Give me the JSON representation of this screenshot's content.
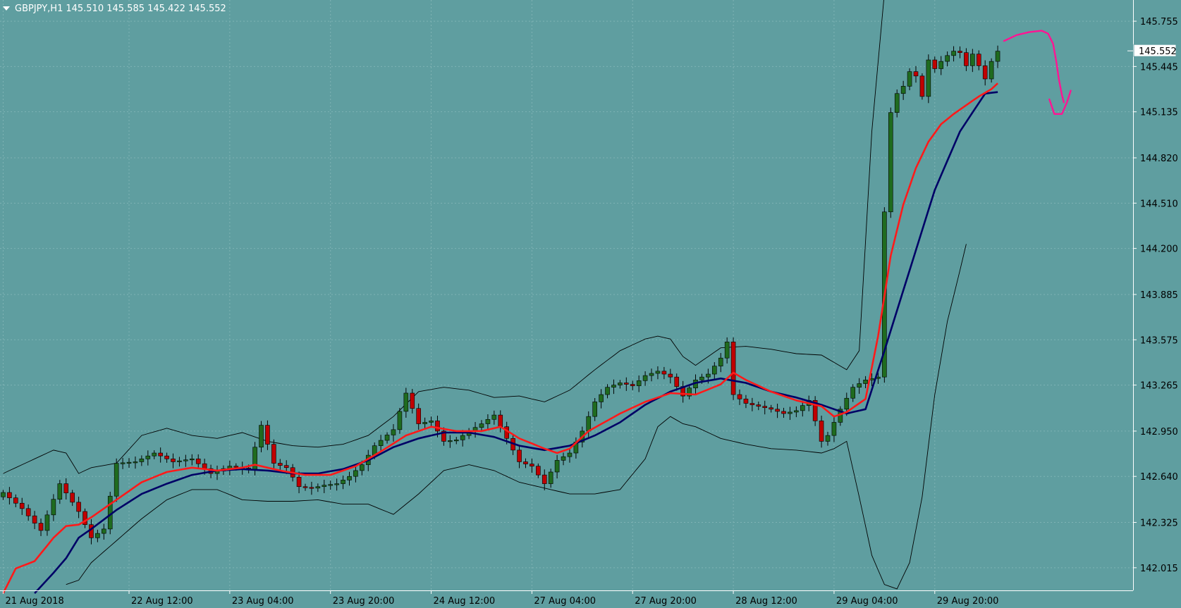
{
  "header": {
    "symbol": "GBPJPY,H1",
    "ohlc": "145.510 145.585 145.422 145.552"
  },
  "chart_data": {
    "type": "candlestick",
    "symbol": "GBPJPY",
    "timeframe": "H1",
    "ylim": [
      141.86,
      145.9
    ],
    "y_ticks": [
      "145.755",
      "145.445",
      "145.135",
      "144.820",
      "144.510",
      "144.200",
      "143.885",
      "143.575",
      "143.265",
      "142.950",
      "142.640",
      "142.325",
      "142.015"
    ],
    "x_ticks": [
      "21 Aug 2018",
      "22 Aug 12:00",
      "23 Aug 04:00",
      "23 Aug 20:00",
      "24 Aug 12:00",
      "27 Aug 04:00",
      "27 Aug 20:00",
      "28 Aug 12:00",
      "29 Aug 04:00",
      "29 Aug 20:00"
    ],
    "x_tick_index": [
      0,
      20,
      36,
      52,
      68,
      84,
      100,
      116,
      132,
      148
    ],
    "bars_visible": 180,
    "current_price": "145.552",
    "grid": true,
    "colors": {
      "background": "#5f9ea0",
      "bull": "#1f6b1f",
      "bear": "#c00000",
      "ma_fast": "#ff1a1a",
      "ma_slow": "#000066",
      "bands": "#000000",
      "annotation": "#ff1493",
      "axis": "#ffffff"
    },
    "series": [
      {
        "kind": "ohlc",
        "anchors": [
          [
            0,
            142.53
          ],
          [
            3,
            142.42
          ],
          [
            6,
            142.27
          ],
          [
            9,
            142.59
          ],
          [
            12,
            142.4
          ],
          [
            14,
            142.22
          ],
          [
            16,
            142.28
          ],
          [
            18,
            142.73
          ],
          [
            21,
            142.74
          ],
          [
            24,
            142.8
          ],
          [
            27,
            142.74
          ],
          [
            30,
            142.76
          ],
          [
            33,
            142.66
          ],
          [
            36,
            142.71
          ],
          [
            39,
            142.69
          ],
          [
            41,
            142.99
          ],
          [
            43,
            142.73
          ],
          [
            45,
            142.7
          ],
          [
            47,
            142.57
          ],
          [
            49,
            142.56
          ],
          [
            51,
            142.58
          ],
          [
            53,
            142.59
          ],
          [
            55,
            142.64
          ],
          [
            57,
            142.72
          ],
          [
            59,
            142.85
          ],
          [
            62,
            142.96
          ],
          [
            64,
            143.21
          ],
          [
            66,
            143.0
          ],
          [
            68,
            143.02
          ],
          [
            70,
            142.88
          ],
          [
            72,
            142.89
          ],
          [
            74,
            142.95
          ],
          [
            76,
            143.0
          ],
          [
            78,
            143.06
          ],
          [
            80,
            142.9
          ],
          [
            82,
            142.74
          ],
          [
            84,
            142.71
          ],
          [
            86,
            142.59
          ],
          [
            88,
            142.75
          ],
          [
            90,
            142.8
          ],
          [
            92,
            142.95
          ],
          [
            94,
            143.15
          ],
          [
            96,
            143.25
          ],
          [
            98,
            143.28
          ],
          [
            100,
            143.26
          ],
          [
            102,
            143.33
          ],
          [
            104,
            143.36
          ],
          [
            106,
            143.32
          ],
          [
            108,
            143.19
          ],
          [
            110,
            143.3
          ],
          [
            112,
            143.34
          ],
          [
            114,
            143.45
          ],
          [
            115,
            143.56
          ],
          [
            116,
            143.2
          ],
          [
            118,
            143.14
          ],
          [
            120,
            143.12
          ],
          [
            122,
            143.1
          ],
          [
            124,
            143.07
          ],
          [
            126,
            143.09
          ],
          [
            128,
            143.16
          ],
          [
            130,
            142.88
          ],
          [
            131,
            142.92
          ],
          [
            133,
            143.1
          ],
          [
            135,
            143.25
          ],
          [
            137,
            143.3
          ],
          [
            139,
            143.32
          ],
          [
            140,
            144.45
          ],
          [
            141,
            145.13
          ],
          [
            142,
            145.26
          ],
          [
            143,
            145.31
          ],
          [
            144,
            145.41
          ],
          [
            145,
            145.38
          ],
          [
            146,
            145.24
          ],
          [
            147,
            145.49
          ],
          [
            148,
            145.43
          ],
          [
            149,
            145.48
          ],
          [
            150,
            145.52
          ],
          [
            151,
            145.55
          ],
          [
            152,
            145.54
          ],
          [
            153,
            145.45
          ],
          [
            154,
            145.53
          ],
          [
            155,
            145.45
          ],
          [
            156,
            145.36
          ],
          [
            157,
            145.48
          ],
          [
            158,
            145.55
          ]
        ]
      },
      {
        "kind": "ma_fast",
        "anchors": [
          [
            0,
            141.84
          ],
          [
            2,
            142.01
          ],
          [
            5,
            142.06
          ],
          [
            8,
            142.22
          ],
          [
            10,
            142.3
          ],
          [
            12,
            142.31
          ],
          [
            14,
            142.36
          ],
          [
            18,
            142.48
          ],
          [
            22,
            142.6
          ],
          [
            26,
            142.67
          ],
          [
            30,
            142.7
          ],
          [
            34,
            142.68
          ],
          [
            38,
            142.7
          ],
          [
            40,
            142.72
          ],
          [
            44,
            142.68
          ],
          [
            48,
            142.65
          ],
          [
            52,
            142.65
          ],
          [
            56,
            142.71
          ],
          [
            60,
            142.81
          ],
          [
            64,
            142.92
          ],
          [
            68,
            142.98
          ],
          [
            72,
            142.95
          ],
          [
            76,
            142.95
          ],
          [
            79,
            142.98
          ],
          [
            82,
            142.9
          ],
          [
            86,
            142.83
          ],
          [
            88,
            142.8
          ],
          [
            90,
            142.83
          ],
          [
            93,
            142.95
          ],
          [
            98,
            143.07
          ],
          [
            102,
            143.15
          ],
          [
            106,
            143.21
          ],
          [
            110,
            143.2
          ],
          [
            114,
            143.27
          ],
          [
            116,
            143.35
          ],
          [
            118,
            143.3
          ],
          [
            122,
            143.22
          ],
          [
            126,
            143.16
          ],
          [
            130,
            143.12
          ],
          [
            132,
            143.05
          ],
          [
            134,
            143.08
          ],
          [
            137,
            143.17
          ],
          [
            139,
            143.6
          ],
          [
            141,
            144.15
          ],
          [
            143,
            144.5
          ],
          [
            145,
            144.75
          ],
          [
            147,
            144.93
          ],
          [
            149,
            145.05
          ],
          [
            151,
            145.12
          ],
          [
            153,
            145.18
          ],
          [
            155,
            145.24
          ],
          [
            157,
            145.29
          ],
          [
            158,
            145.33
          ]
        ]
      },
      {
        "kind": "ma_slow",
        "anchors": [
          [
            5,
            141.84
          ],
          [
            8,
            141.98
          ],
          [
            10,
            142.08
          ],
          [
            12,
            142.22
          ],
          [
            14,
            142.28
          ],
          [
            18,
            142.41
          ],
          [
            22,
            142.52
          ],
          [
            26,
            142.59
          ],
          [
            30,
            142.65
          ],
          [
            34,
            142.68
          ],
          [
            38,
            142.69
          ],
          [
            42,
            142.68
          ],
          [
            46,
            142.66
          ],
          [
            50,
            142.66
          ],
          [
            54,
            142.69
          ],
          [
            58,
            142.75
          ],
          [
            62,
            142.84
          ],
          [
            66,
            142.9
          ],
          [
            70,
            142.94
          ],
          [
            74,
            142.94
          ],
          [
            78,
            142.91
          ],
          [
            82,
            142.85
          ],
          [
            86,
            142.82
          ],
          [
            90,
            142.85
          ],
          [
            94,
            142.92
          ],
          [
            98,
            143.01
          ],
          [
            102,
            143.13
          ],
          [
            106,
            143.22
          ],
          [
            110,
            143.28
          ],
          [
            114,
            143.31
          ],
          [
            118,
            143.28
          ],
          [
            122,
            143.22
          ],
          [
            126,
            143.18
          ],
          [
            130,
            143.13
          ],
          [
            134,
            143.07
          ],
          [
            137,
            143.1
          ],
          [
            140,
            143.5
          ],
          [
            144,
            144.05
          ],
          [
            148,
            144.6
          ],
          [
            152,
            145.0
          ],
          [
            156,
            145.26
          ],
          [
            158,
            145.27
          ]
        ]
      },
      {
        "kind": "band_upper",
        "anchors": [
          [
            0,
            142.66
          ],
          [
            4,
            142.74
          ],
          [
            8,
            142.82
          ],
          [
            10,
            142.8
          ],
          [
            12,
            142.66
          ],
          [
            14,
            142.7
          ],
          [
            18,
            142.73
          ],
          [
            22,
            142.92
          ],
          [
            26,
            142.97
          ],
          [
            30,
            142.92
          ],
          [
            34,
            142.9
          ],
          [
            38,
            142.94
          ],
          [
            42,
            142.88
          ],
          [
            46,
            142.85
          ],
          [
            50,
            142.84
          ],
          [
            54,
            142.86
          ],
          [
            58,
            142.92
          ],
          [
            62,
            143.05
          ],
          [
            66,
            143.22
          ],
          [
            70,
            143.25
          ],
          [
            74,
            143.23
          ],
          [
            78,
            143.18
          ],
          [
            82,
            143.19
          ],
          [
            86,
            143.15
          ],
          [
            90,
            143.23
          ],
          [
            94,
            143.37
          ],
          [
            98,
            143.5
          ],
          [
            102,
            143.58
          ],
          [
            104,
            143.6
          ],
          [
            106,
            143.58
          ],
          [
            108,
            143.46
          ],
          [
            110,
            143.4
          ],
          [
            114,
            143.52
          ],
          [
            118,
            143.53
          ],
          [
            122,
            143.51
          ],
          [
            126,
            143.48
          ],
          [
            130,
            143.47
          ],
          [
            134,
            143.37
          ],
          [
            136,
            143.5
          ],
          [
            138,
            145.0
          ],
          [
            140,
            145.95
          ]
        ]
      },
      {
        "kind": "band_lower",
        "anchors": [
          [
            10,
            141.9
          ],
          [
            12,
            141.93
          ],
          [
            14,
            142.05
          ],
          [
            18,
            142.2
          ],
          [
            22,
            142.35
          ],
          [
            26,
            142.48
          ],
          [
            30,
            142.55
          ],
          [
            34,
            142.55
          ],
          [
            38,
            142.48
          ],
          [
            42,
            142.47
          ],
          [
            46,
            142.47
          ],
          [
            50,
            142.48
          ],
          [
            54,
            142.45
          ],
          [
            58,
            142.45
          ],
          [
            62,
            142.38
          ],
          [
            66,
            142.52
          ],
          [
            70,
            142.68
          ],
          [
            74,
            142.72
          ],
          [
            78,
            142.68
          ],
          [
            82,
            142.6
          ],
          [
            86,
            142.56
          ],
          [
            90,
            142.52
          ],
          [
            94,
            142.52
          ],
          [
            98,
            142.55
          ],
          [
            102,
            142.76
          ],
          [
            104,
            142.98
          ],
          [
            106,
            143.05
          ],
          [
            108,
            143.0
          ],
          [
            110,
            142.98
          ],
          [
            114,
            142.9
          ],
          [
            118,
            142.86
          ],
          [
            122,
            142.83
          ],
          [
            126,
            142.82
          ],
          [
            130,
            142.8
          ],
          [
            132,
            142.83
          ],
          [
            134,
            142.88
          ],
          [
            136,
            142.5
          ],
          [
            138,
            142.1
          ],
          [
            140,
            141.9
          ],
          [
            142,
            141.87
          ],
          [
            144,
            142.05
          ],
          [
            146,
            142.5
          ],
          [
            148,
            143.2
          ],
          [
            150,
            143.7
          ],
          [
            152,
            144.05
          ],
          [
            153,
            144.23
          ]
        ]
      }
    ],
    "annotations": [
      {
        "kind": "freehand_arrow",
        "points": [
          [
            159,
            145.62
          ],
          [
            161,
            145.66
          ],
          [
            163,
            145.68
          ],
          [
            165,
            145.69
          ],
          [
            166,
            145.67
          ],
          [
            166.8,
            145.6
          ],
          [
            167.3,
            145.48
          ],
          [
            167.7,
            145.36
          ],
          [
            168.2,
            145.25
          ],
          [
            168.5,
            145.2
          ]
        ],
        "head": [
          [
            166.2,
            145.22
          ],
          [
            167,
            145.12
          ],
          [
            168.2,
            145.12
          ],
          [
            169,
            145.2
          ],
          [
            169.6,
            145.28
          ]
        ]
      }
    ]
  }
}
